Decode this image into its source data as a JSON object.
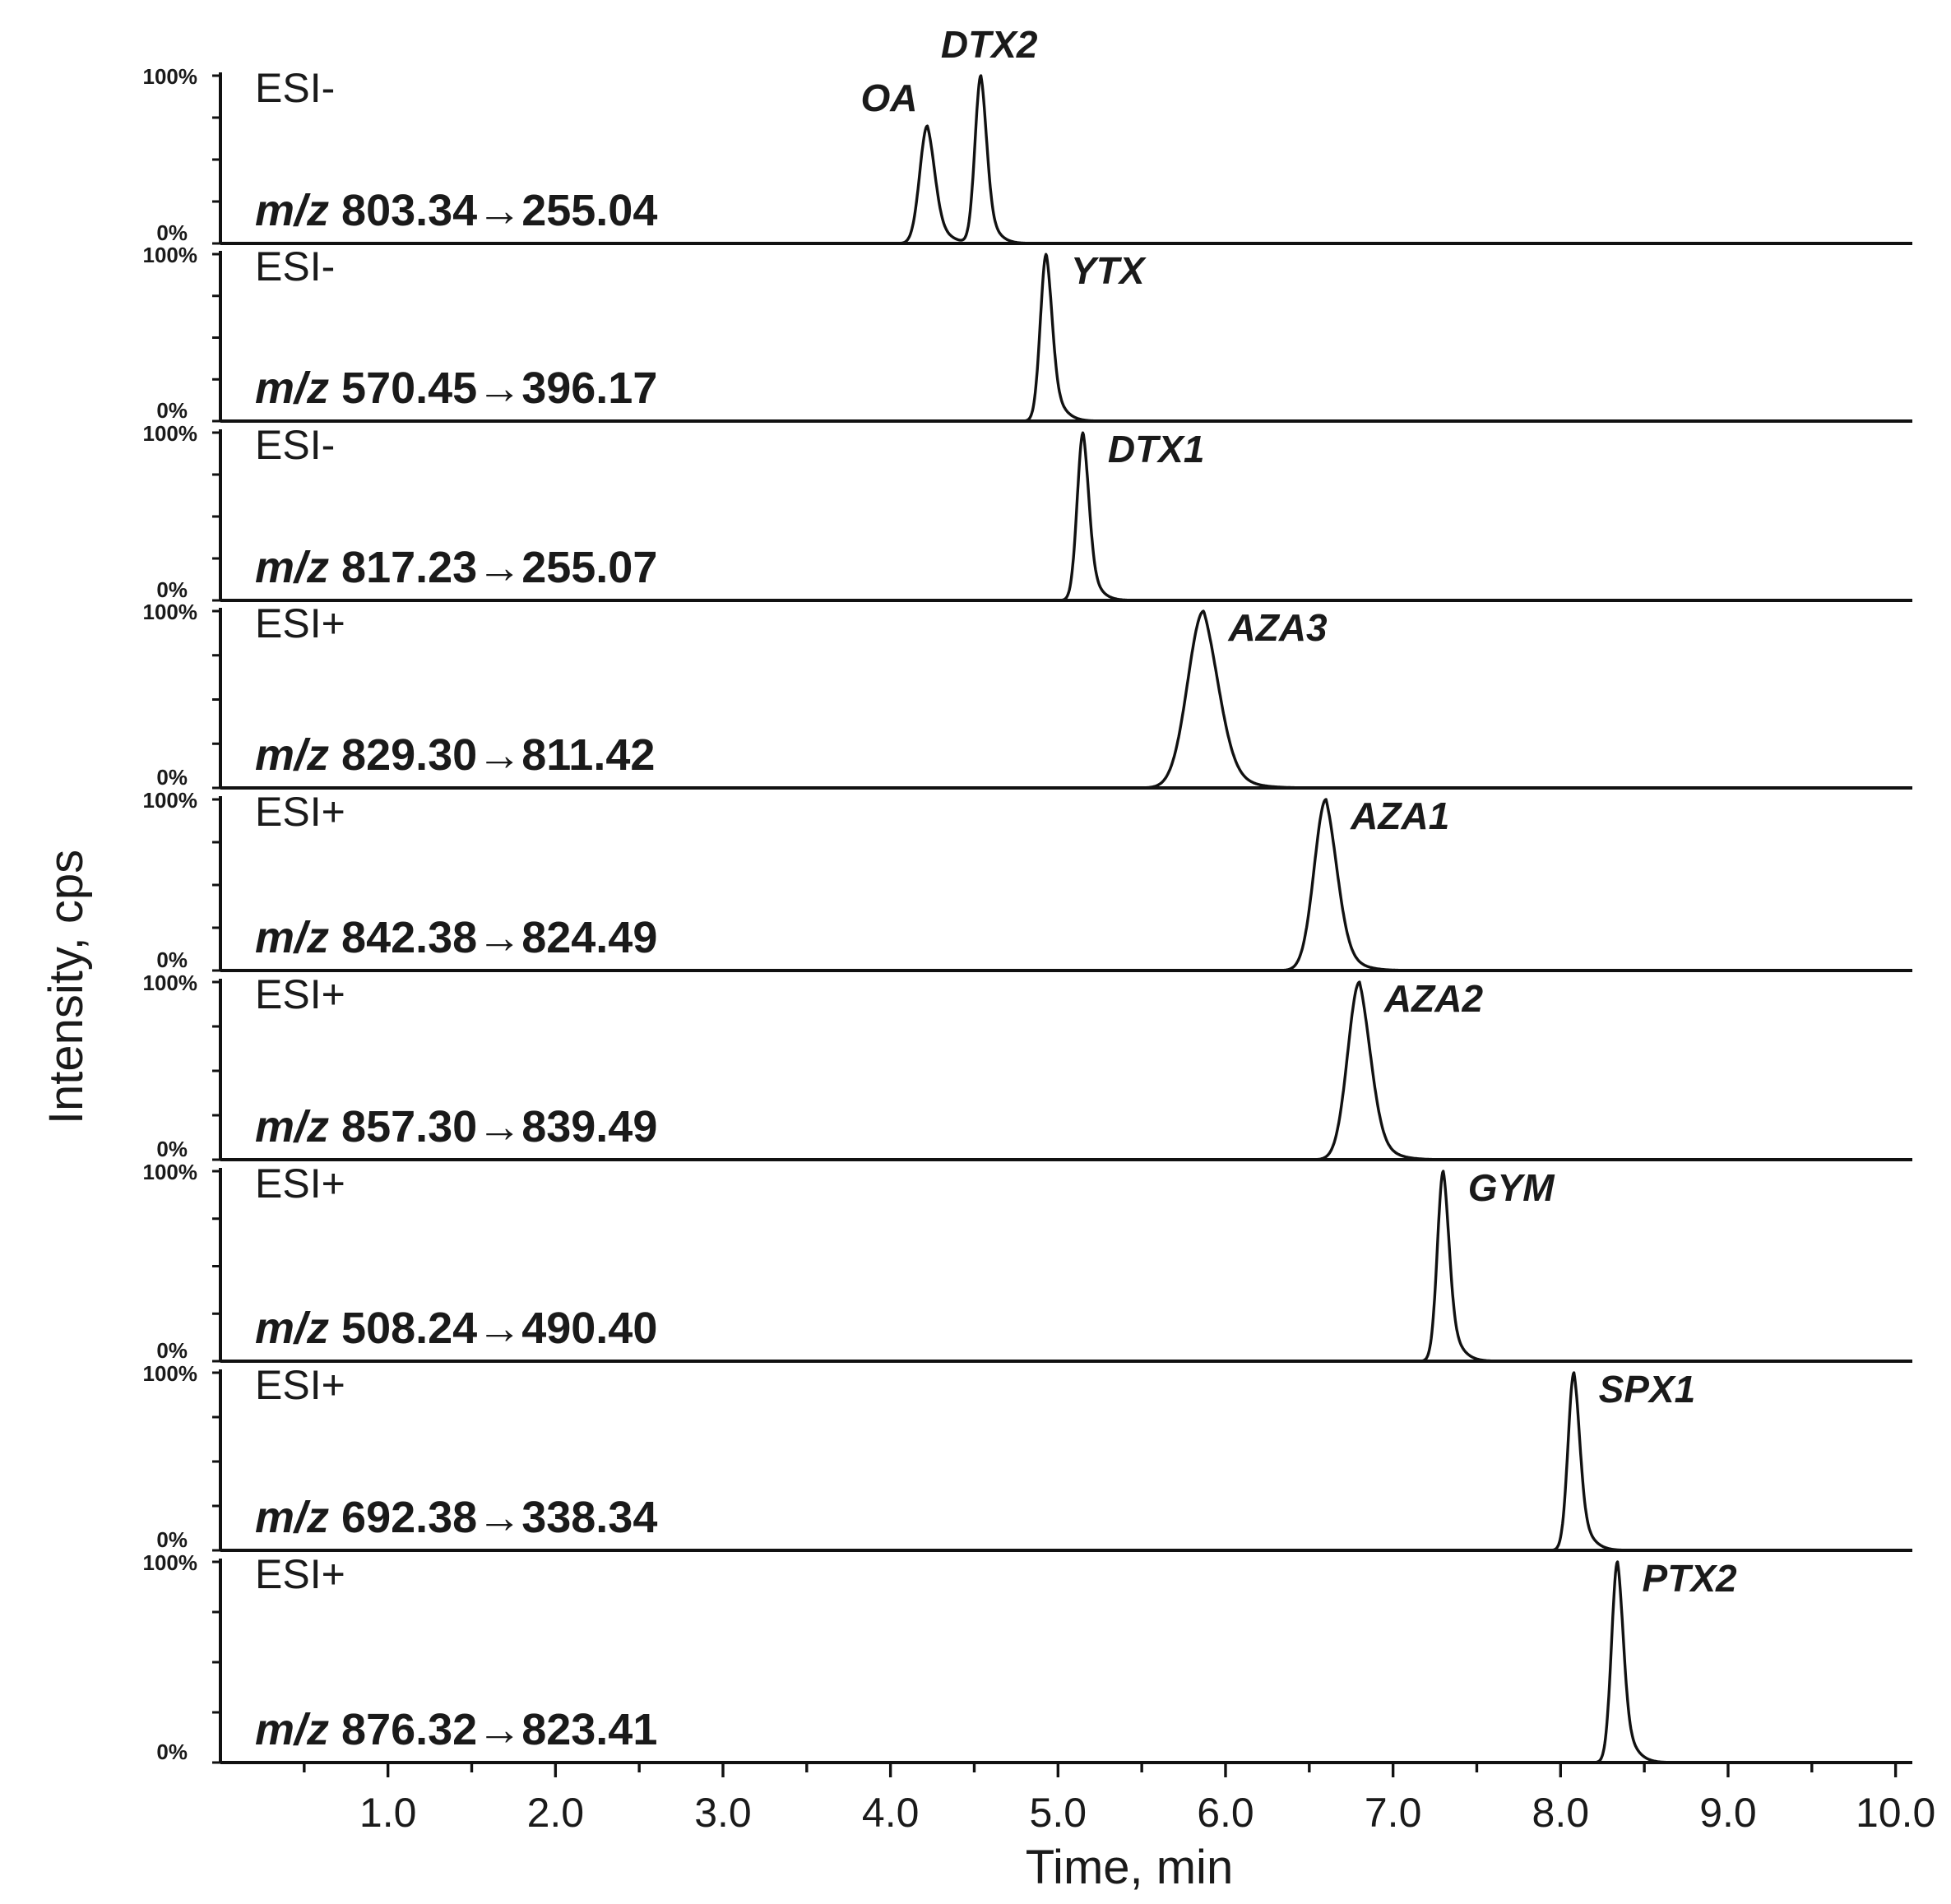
{
  "chart_data": {
    "type": "line",
    "title": "",
    "xlabel": "Time, min",
    "ylabel": "Intensity, cps",
    "xlim": [
      0,
      10.1
    ],
    "x_ticks": [
      "1.0",
      "2.0",
      "3.0",
      "4.0",
      "5.0",
      "6.0",
      "7.0",
      "8.0",
      "9.0",
      "10.0"
    ],
    "x_tick_values": [
      1,
      2,
      3,
      4,
      5,
      6,
      7,
      8,
      9,
      10
    ],
    "y_max_label": "100%",
    "y_min_label": "0%",
    "grid": false,
    "legend": "none",
    "line_color": "#111111",
    "panels": [
      {
        "mode": "ESI-",
        "mz_prefix": "m/z",
        "mz": "803.34→255.04",
        "peaks": [
          {
            "name": "OA",
            "rt": 4.22,
            "height": 0.7,
            "width": 0.045,
            "tail": 0.09
          },
          {
            "name": "DTX2",
            "rt": 4.54,
            "height": 1.0,
            "width": 0.035,
            "tail": 0.07
          }
        ]
      },
      {
        "mode": "ESI-",
        "mz_prefix": "m/z",
        "mz": "570.45→396.17",
        "peaks": [
          {
            "name": "YTX",
            "rt": 4.93,
            "height": 1.0,
            "width": 0.035,
            "tail": 0.08
          }
        ]
      },
      {
        "mode": "ESI-",
        "mz_prefix": "m/z",
        "mz": "817.23→255.07",
        "peaks": [
          {
            "name": "DTX1",
            "rt": 5.15,
            "height": 1.0,
            "width": 0.035,
            "tail": 0.07
          }
        ]
      },
      {
        "mode": "ESI+",
        "mz_prefix": "m/z",
        "mz": "829.30→811.42",
        "peaks": [
          {
            "name": "AZA3",
            "rt": 5.87,
            "height": 1.0,
            "width": 0.095,
            "tail": 0.12
          }
        ]
      },
      {
        "mode": "ESI+",
        "mz_prefix": "m/z",
        "mz": "842.38→824.49",
        "peaks": [
          {
            "name": "AZA1",
            "rt": 6.6,
            "height": 1.0,
            "width": 0.07,
            "tail": 0.1
          }
        ]
      },
      {
        "mode": "ESI+",
        "mz_prefix": "m/z",
        "mz": "857.30→839.49",
        "peaks": [
          {
            "name": "AZA2",
            "rt": 6.8,
            "height": 1.0,
            "width": 0.07,
            "tail": 0.1
          }
        ]
      },
      {
        "mode": "ESI+",
        "mz_prefix": "m/z",
        "mz": "508.24→490.40",
        "peaks": [
          {
            "name": "GYM",
            "rt": 7.3,
            "height": 1.0,
            "width": 0.035,
            "tail": 0.08
          }
        ]
      },
      {
        "mode": "ESI+",
        "mz_prefix": "m/z",
        "mz": "692.38→338.34",
        "peaks": [
          {
            "name": "SPX1",
            "rt": 8.08,
            "height": 1.0,
            "width": 0.035,
            "tail": 0.08
          }
        ]
      },
      {
        "mode": "ESI+",
        "mz_prefix": "m/z",
        "mz": "876.32→823.41",
        "peaks": [
          {
            "name": "PTX2",
            "rt": 8.34,
            "height": 1.0,
            "width": 0.035,
            "tail": 0.08
          }
        ]
      }
    ]
  }
}
